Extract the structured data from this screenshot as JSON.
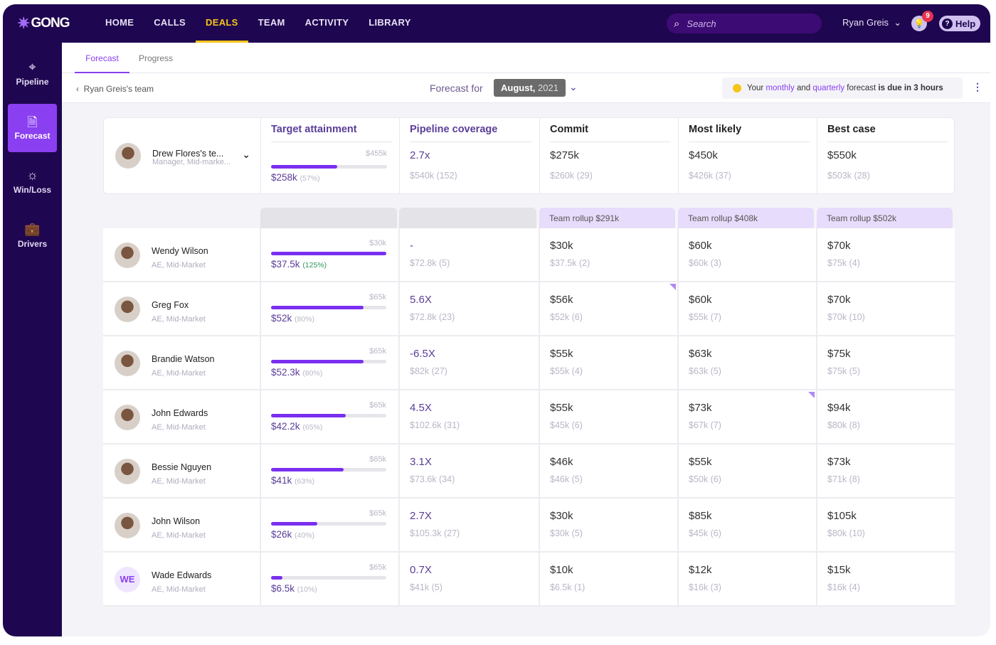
{
  "app": {
    "logo": "GONG",
    "nav": [
      "HOME",
      "CALLS",
      "DEALS",
      "TEAM",
      "ACTIVITY",
      "LIBRARY"
    ],
    "active_nav": "DEALS",
    "search_placeholder": "Search",
    "user": "Ryan Greis",
    "notifications": "9",
    "help": "Help"
  },
  "sidebar": [
    {
      "label": "Pipeline",
      "icon": "crosshair-icon"
    },
    {
      "label": "Forecast",
      "icon": "forecast-icon",
      "active": true
    },
    {
      "label": "Win/Loss",
      "icon": "lightbulb-icon"
    },
    {
      "label": "Drivers",
      "icon": "briefcase-icon"
    }
  ],
  "tabs": [
    "Forecast",
    "Progress"
  ],
  "header": {
    "breadcrumb": "Ryan Greis's team",
    "forecast_for": "Forecast for",
    "month": "August,",
    "year": "2021",
    "due": {
      "a": "Your",
      "b": "monthly",
      "c": "and",
      "d": "quarterly",
      "e": "forecast",
      "f": "is due in 3 hours"
    }
  },
  "columns": [
    "Target attainment",
    "Pipeline coverage",
    "Commit",
    "Most likely",
    "Best case"
  ],
  "summary": {
    "name": "Drew Flores's te...",
    "role": "Manager, Mid-marke...",
    "target": "$455k",
    "attained": "$258k",
    "pct": "(57%)",
    "progress": 57,
    "coverage": "2.7x",
    "coverage_sub": "$540k (152)",
    "commit": "$275k",
    "commit_sub": "$260k (29)",
    "likely": "$450k",
    "likely_sub": "$426k (37)",
    "best": "$550k",
    "best_sub": "$503k (28)"
  },
  "rollups": [
    "Team rollup $291k",
    "Team rollup $408k",
    "Team rollup $502k"
  ],
  "rows": [
    {
      "name": "Wendy Wilson",
      "role": "AE, Mid-Market",
      "target": "$30k",
      "attained": "$37.5k",
      "pct": "(125%)",
      "progress": 100,
      "over": true,
      "coverage": "-",
      "coverage_sub": "$72.8k (5)",
      "commit": "$30k",
      "commit_sub": "$37.5k (2)",
      "likely": "$60k",
      "likely_sub": "$60k (3)",
      "best": "$70k",
      "best_sub": "$75k (4)"
    },
    {
      "name": "Greg Fox",
      "role": "AE, Mid-Market",
      "target": "$65k",
      "attained": "$52k",
      "pct": "(80%)",
      "progress": 80,
      "coverage": "5.6X",
      "coverage_sub": "$72.8k (23)",
      "commit": "$56k",
      "commit_sub": "$52k (6)",
      "commit_flag": true,
      "likely": "$60k",
      "likely_sub": "$55k (7)",
      "best": "$70k",
      "best_sub": "$70k (10)"
    },
    {
      "name": "Brandie Watson",
      "role": "AE, Mid-Market",
      "target": "$65k",
      "attained": "$52.3k",
      "pct": "(80%)",
      "progress": 80,
      "coverage": "-6.5X",
      "coverage_sub": "$82k (27)",
      "commit": "$55k",
      "commit_sub": "$55k (4)",
      "likely": "$63k",
      "likely_sub": "$63k (5)",
      "best": "$75k",
      "best_sub": "$75k (5)"
    },
    {
      "name": "John Edwards",
      "role": "AE, Mid-Market",
      "target": "$65k",
      "attained": "$42.2k",
      "pct": "(65%)",
      "progress": 65,
      "coverage": "4.5X",
      "coverage_sub": "$102.6k (31)",
      "commit": "$55k",
      "commit_sub": "$45k (6)",
      "likely": "$73k",
      "likely_sub": "$67k (7)",
      "likely_flag": true,
      "best": "$94k",
      "best_sub": "$80k (8)"
    },
    {
      "name": "Bessie Nguyen",
      "role": "AE, Mid-Market",
      "target": "$65k",
      "attained": "$41k",
      "pct": "(63%)",
      "progress": 63,
      "coverage": "3.1X",
      "coverage_sub": "$73.6k (34)",
      "commit": "$46k",
      "commit_sub": "$46k (5)",
      "likely": "$55k",
      "likely_sub": "$50k (6)",
      "best": "$73k",
      "best_sub": "$71k (8)"
    },
    {
      "name": "John Wilson",
      "role": "AE, Mid-Market",
      "target": "$65k",
      "attained": "$26k",
      "pct": "(40%)",
      "progress": 40,
      "coverage": "2.7X",
      "coverage_sub": "$105.3k (27)",
      "commit": "$30k",
      "commit_sub": "$30k (5)",
      "likely": "$85k",
      "likely_sub": "$45k (6)",
      "best": "$105k",
      "best_sub": "$80k (10)"
    },
    {
      "name": "Wade Edwards",
      "initials": "WE",
      "role": "AE, Mid-Market",
      "target": "$65k",
      "attained": "$6.5k",
      "pct": "(10%)",
      "progress": 10,
      "coverage": "0.7X",
      "coverage_sub": "$41k (5)",
      "commit": "$10k",
      "commit_sub": "$6.5k (1)",
      "likely": "$12k",
      "likely_sub": "$16k (3)",
      "best": "$15k",
      "best_sub": "$16k (4)"
    }
  ],
  "colors": {
    "nav_bg": "#1f0650",
    "accent": "#8a3ff0",
    "active_nav": "#f5c518",
    "rollup_bg": "#e7dcfb"
  }
}
